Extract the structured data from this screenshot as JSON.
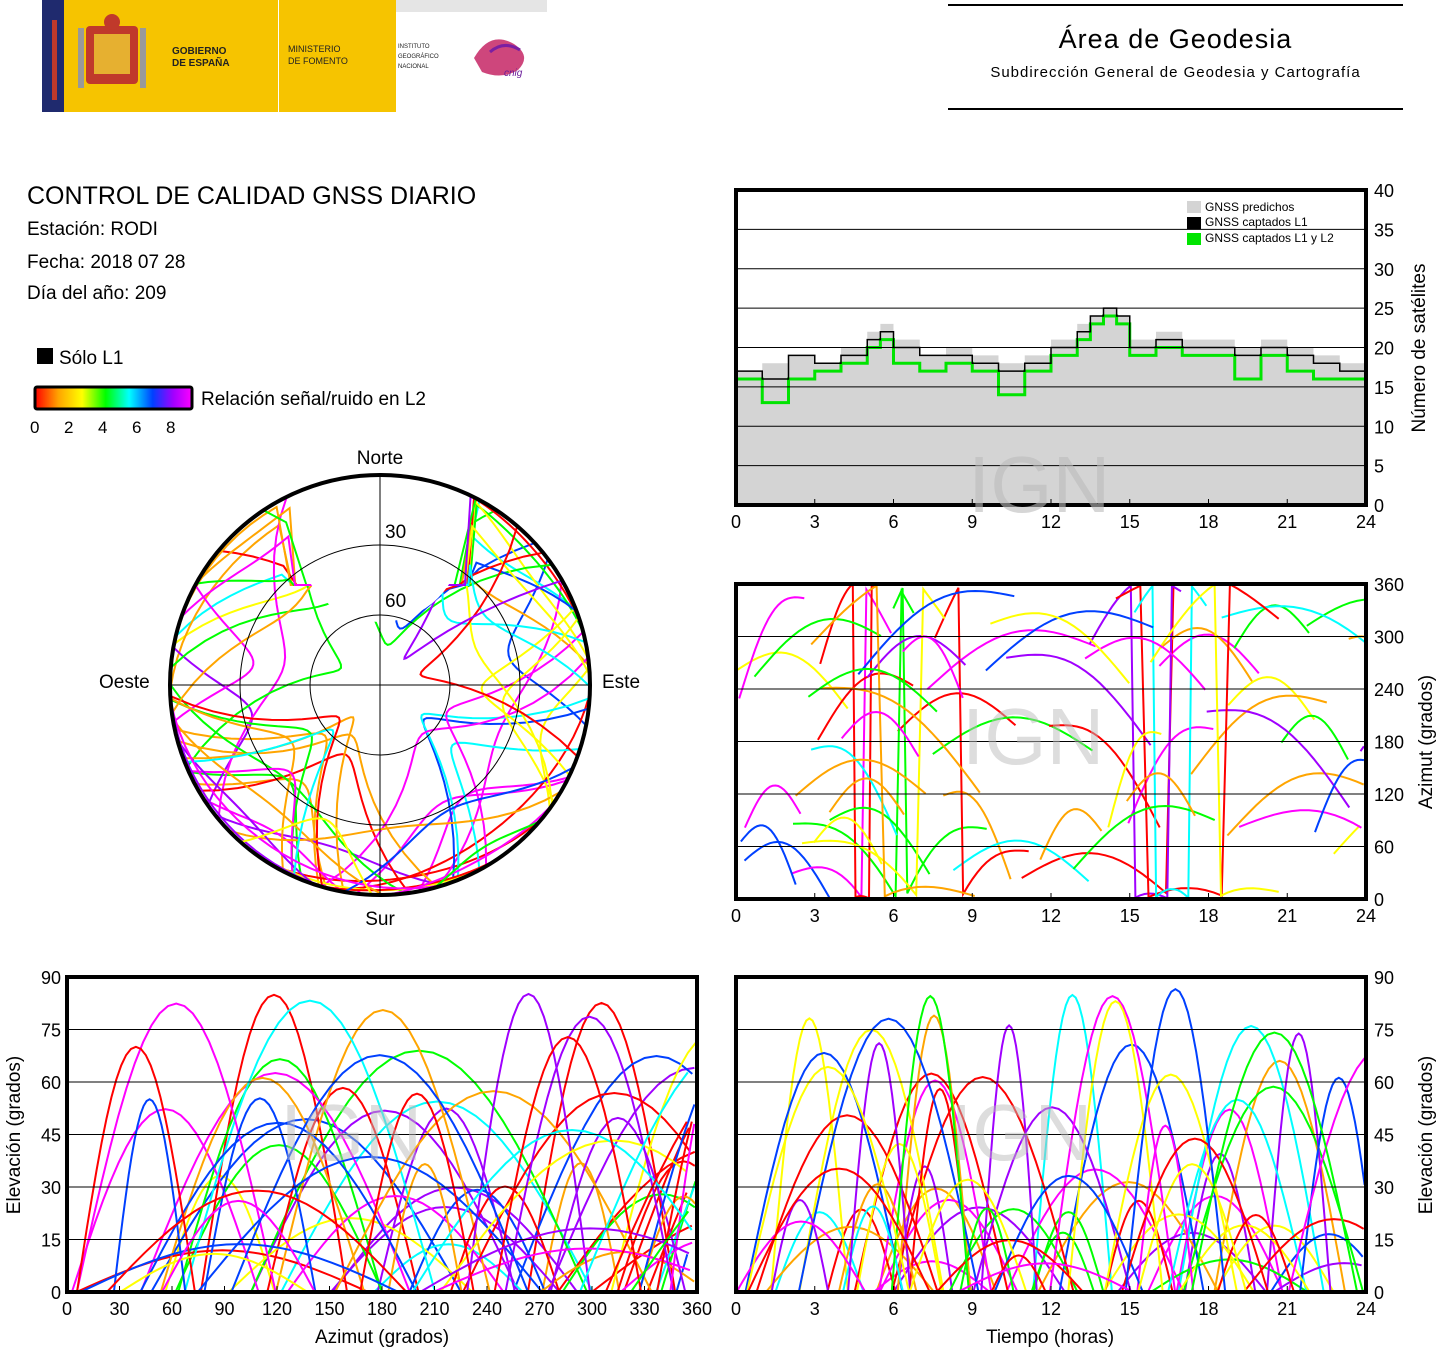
{
  "header": {
    "gov_line1": "GOBIERNO",
    "gov_line2": "DE ESPAÑA",
    "min_line1": "MINISTERIO",
    "min_line2": "DE FOMENTO",
    "ign_line1": "INSTITUTO",
    "ign_line2": "GEOGRÁFICO",
    "ign_line3": "NACIONAL",
    "cnig": "cnig",
    "area_title": "Área de Geodesia",
    "area_subtitle": "Subdirección General de Geodesia y Cartografía"
  },
  "info": {
    "title": "CONTROL DE CALIDAD GNSS DIARIO",
    "station": "Estación: RODI",
    "date": "Fecha: 2018 07 28",
    "doy": "Día del año: 209"
  },
  "legend": {
    "solo_l1": "Sólo L1",
    "snr_label": "Relación señal/ruido en L2",
    "snr_ticks": [
      "0",
      "2",
      "4",
      "6",
      "8"
    ]
  },
  "watermark": "IGN",
  "colors": {
    "predicted": "#d4d4d4",
    "l1": "#000000",
    "l1l2": "#00e400",
    "snr_scale": [
      "#ff0000",
      "#ffa500",
      "#ffff00",
      "#00ff00",
      "#00ffff",
      "#0040ff",
      "#a000ff",
      "#ff00ff"
    ]
  },
  "chart_data": [
    {
      "type": "polar-skyplot",
      "directions": {
        "north": "Norte",
        "south": "Sur",
        "east": "Este",
        "west": "Oeste"
      },
      "elevation_ticks": [
        "30",
        "60"
      ],
      "elevation_range": [
        0,
        90
      ]
    },
    {
      "type": "area",
      "ylabel": "Número de satélites",
      "xlim": [
        0,
        24
      ],
      "ylim": [
        0,
        40
      ],
      "x_ticks": [
        "0",
        "3",
        "6",
        "9",
        "12",
        "15",
        "18",
        "21",
        "24"
      ],
      "y_ticks": [
        "0",
        "5",
        "10",
        "15",
        "20",
        "25",
        "30",
        "35",
        "40"
      ],
      "legend_position": "top-right",
      "series": [
        {
          "name": "GNSS predichos",
          "hours": [
            0,
            1,
            2,
            3,
            4,
            5,
            5.5,
            6,
            7,
            8,
            9,
            10,
            11,
            12,
            13,
            13.5,
            14,
            14.5,
            15,
            16,
            17,
            18,
            19,
            20,
            21,
            22,
            23,
            24
          ],
          "values": [
            17,
            18,
            19,
            18,
            20,
            22,
            23,
            21,
            19,
            20,
            19,
            18,
            19,
            21,
            23,
            24,
            25,
            24,
            21,
            22,
            21,
            21,
            20,
            21,
            20,
            19,
            18,
            14
          ]
        },
        {
          "name": "GNSS captados L1",
          "hours": [
            0,
            1,
            2,
            3,
            4,
            5,
            5.5,
            6,
            7,
            8,
            9,
            10,
            11,
            12,
            13,
            13.5,
            14,
            14.5,
            15,
            16,
            17,
            18,
            19,
            20,
            21,
            22,
            23,
            24
          ],
          "values": [
            17,
            16,
            19,
            18,
            19,
            21,
            22,
            20,
            19,
            19,
            18,
            17,
            18,
            20,
            22,
            24,
            25,
            24,
            20,
            21,
            20,
            20,
            19,
            20,
            19,
            18,
            17,
            13
          ]
        },
        {
          "name": "GNSS captados L1 y L2",
          "hours": [
            0,
            1,
            2,
            3,
            4,
            5,
            5.5,
            6,
            7,
            8,
            9,
            10,
            11,
            12,
            13,
            13.5,
            14,
            14.5,
            15,
            16,
            17,
            18,
            19,
            20,
            21,
            22,
            23,
            24
          ],
          "values": [
            16,
            13,
            16,
            17,
            18,
            20,
            21,
            18,
            17,
            18,
            17,
            14,
            17,
            19,
            21,
            23,
            24,
            23,
            19,
            20,
            19,
            19,
            16,
            19,
            17,
            16,
            16,
            12
          ]
        }
      ]
    },
    {
      "type": "scatter",
      "ylabel": "Azimut (grados)",
      "xlim": [
        0,
        24
      ],
      "ylim": [
        0,
        360
      ],
      "x_ticks": [
        "0",
        "3",
        "6",
        "9",
        "12",
        "15",
        "18",
        "21",
        "24"
      ],
      "y_ticks": [
        "0",
        "60",
        "120",
        "180",
        "240",
        "300",
        "360"
      ]
    },
    {
      "type": "scatter",
      "xlabel": "Azimut (grados)",
      "ylabel": "Elevación (grados)",
      "xlim": [
        0,
        360
      ],
      "ylim": [
        0,
        90
      ],
      "x_ticks": [
        "0",
        "30",
        "60",
        "90",
        "120",
        "150",
        "180",
        "210",
        "240",
        "270",
        "300",
        "330",
        "360"
      ],
      "y_ticks": [
        "0",
        "15",
        "30",
        "45",
        "60",
        "75",
        "90"
      ]
    },
    {
      "type": "scatter",
      "xlabel": "Tiempo (horas)",
      "ylabel": "Elevación (grados)",
      "xlim": [
        0,
        24
      ],
      "ylim": [
        0,
        90
      ],
      "x_ticks": [
        "0",
        "3",
        "6",
        "9",
        "12",
        "15",
        "18",
        "21",
        "24"
      ],
      "y_ticks": [
        "0",
        "15",
        "30",
        "45",
        "60",
        "75",
        "90"
      ]
    }
  ]
}
